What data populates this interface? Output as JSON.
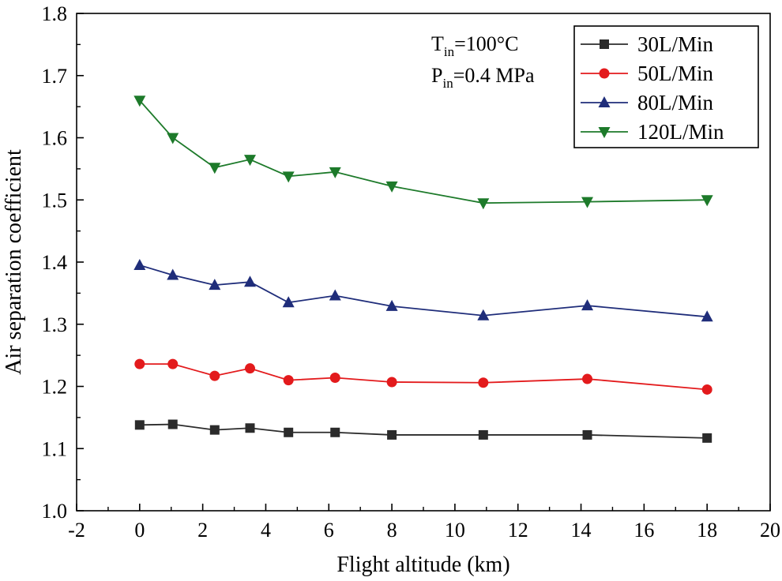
{
  "chart_data": {
    "type": "line",
    "title": "",
    "xlabel": "Flight altitude (km)",
    "ylabel": "Air separation coefficient",
    "xlim": [
      -2,
      20
    ],
    "ylim": [
      1.0,
      1.8
    ],
    "xticks": [
      -2,
      0,
      2,
      4,
      6,
      8,
      10,
      12,
      14,
      16,
      18,
      20
    ],
    "yticks": [
      1.0,
      1.1,
      1.2,
      1.3,
      1.4,
      1.5,
      1.6,
      1.7,
      1.8
    ],
    "xtick_labels": [
      "-2",
      "0",
      "2",
      "4",
      "6",
      "8",
      "10",
      "12",
      "14",
      "16",
      "18",
      "20"
    ],
    "ytick_labels": [
      "1.0",
      "1.1",
      "1.2",
      "1.3",
      "1.4",
      "1.5",
      "1.6",
      "1.7",
      "1.8"
    ],
    "grid": false,
    "legend_position": "top-right",
    "x": [
      0,
      1.05,
      2.38,
      3.5,
      4.72,
      6.2,
      8.0,
      10.9,
      14.2,
      18.0
    ],
    "series": [
      {
        "name": "30L/Min",
        "color": "#2b2b2b",
        "marker": "square",
        "values": [
          1.138,
          1.139,
          1.13,
          1.133,
          1.126,
          1.126,
          1.122,
          1.122,
          1.122,
          1.117
        ]
      },
      {
        "name": "50L/Min",
        "color": "#e31a1c",
        "marker": "circle",
        "values": [
          1.236,
          1.236,
          1.217,
          1.229,
          1.21,
          1.214,
          1.207,
          1.206,
          1.212,
          1.195
        ]
      },
      {
        "name": "80L/Min",
        "color": "#1f2d7a",
        "marker": "triangle-up",
        "values": [
          1.395,
          1.379,
          1.363,
          1.368,
          1.335,
          1.346,
          1.329,
          1.314,
          1.33,
          1.312
        ]
      },
      {
        "name": "120L/Min",
        "color": "#1d7a2a",
        "marker": "triangle-down",
        "values": [
          1.66,
          1.6,
          1.552,
          1.565,
          1.538,
          1.545,
          1.522,
          1.495,
          1.497,
          1.5
        ]
      }
    ],
    "annotations": {
      "temperature": {
        "symbol": "T",
        "subscript": "in",
        "value": "=100°C"
      },
      "pressure": {
        "symbol": "P",
        "subscript": "in",
        "value": "=0.4 MPa"
      }
    }
  }
}
